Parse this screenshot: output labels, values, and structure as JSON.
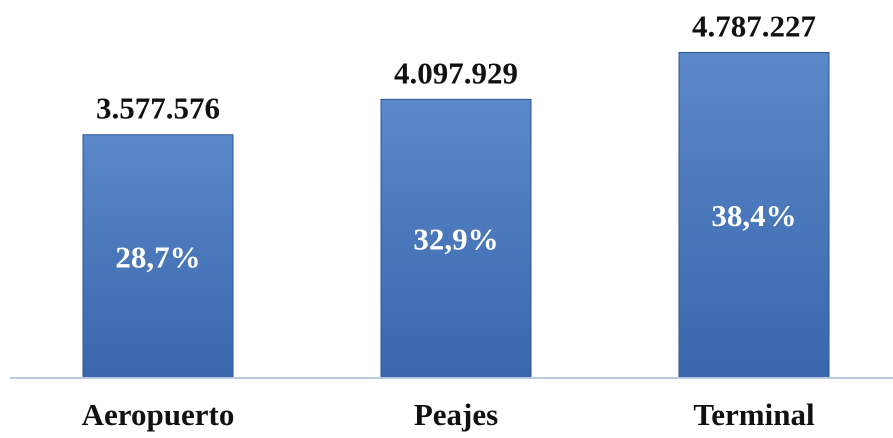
{
  "chart_data": {
    "type": "bar",
    "categories": [
      "Aeropuerto",
      "Peajes",
      "Terminal"
    ],
    "values": [
      3577576,
      4097929,
      4787227
    ],
    "value_labels": [
      "3.577.576",
      "4.097.929",
      "4.787.227"
    ],
    "share_labels": [
      "28,7%",
      "32,9%",
      "38,4%"
    ],
    "title": "",
    "xlabel": "",
    "ylabel": "",
    "ylim": [
      0,
      5000000
    ],
    "grid": false,
    "legend": "none",
    "colors": {
      "bar_top": "#5b88c8",
      "bar_bottom": "#3a66ad",
      "bar_edge": "#2f5597",
      "axis": "#b9c9de"
    }
  }
}
